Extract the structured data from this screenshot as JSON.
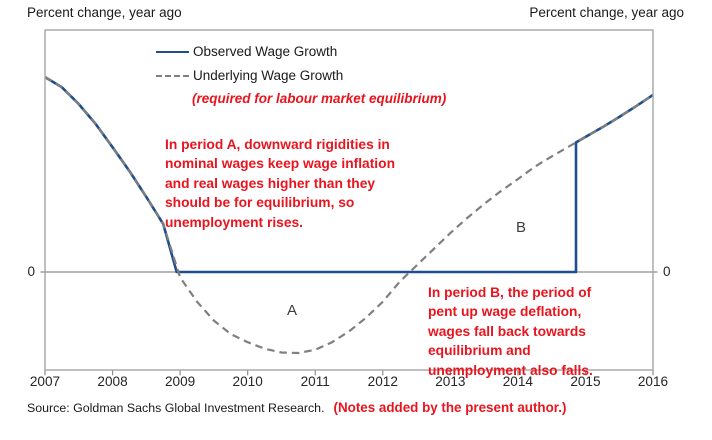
{
  "titles": {
    "left": "Percent change, year ago",
    "right": "Percent change, year ago"
  },
  "legend": {
    "observed_label": "Observed Wage Growth",
    "underlying_label": "Underlying Wage Growth",
    "underlying_sub": "(required for labour market equilibrium)"
  },
  "annotations": {
    "period_a": "In period A, downward rigidities in\nnominal wages keep wage inflation\nand real wages higher than they\nshould be for equilibrium, so\nunemployment rises.",
    "period_b": "In period B, the period of\npent up wage deflation,\nwages fall back towards\nequilibrium and\nunemployment also falls.",
    "label_a": "A",
    "label_b": "B"
  },
  "footer": {
    "source": "Source: Goldman Sachs Global Investment Research.",
    "note": "(Notes added by the present author.)"
  },
  "colors": {
    "observed_blue": "#1f4e8c",
    "underlying_gray": "#7f7f7f",
    "annotation_red": "#e8141e",
    "plot_border": "#a6a6a6",
    "zero_line": "#8c8c8c"
  },
  "chart_data": {
    "type": "line",
    "title": "",
    "xlabel": "",
    "ylabel": "Percent change, year ago",
    "x_range": [
      2007,
      2016
    ],
    "x_ticks": [
      "2007",
      "2008",
      "2009",
      "2010",
      "2011",
      "2012",
      "2013",
      "2014",
      "2015",
      "2016"
    ],
    "y_zero_label": "0",
    "ylim": [
      -1.8,
      4.5
    ],
    "grid": false,
    "legend_position": "top-center-inside",
    "series": [
      {
        "name": "Observed Wage Growth",
        "style": "solid",
        "color": "#1f4e8c",
        "points": [
          [
            2007,
            3.61
          ],
          [
            2007.25,
            3.42
          ],
          [
            2007.5,
            3.11
          ],
          [
            2007.75,
            2.74
          ],
          [
            2008,
            2.31
          ],
          [
            2008.25,
            1.87
          ],
          [
            2008.5,
            1.39
          ],
          [
            2008.75,
            0.89
          ],
          [
            2008.95,
            0
          ],
          [
            2014.86,
            0
          ],
          [
            2014.86,
            2.4
          ],
          [
            2015,
            2.5
          ],
          [
            2015.25,
            2.68
          ],
          [
            2015.5,
            2.87
          ],
          [
            2015.75,
            3.07
          ],
          [
            2016,
            3.28
          ]
        ]
      },
      {
        "name": "Underlying Wage Growth",
        "style": "dashed",
        "color": "#7f7f7f",
        "points": [
          [
            2007,
            3.61
          ],
          [
            2007.25,
            3.42
          ],
          [
            2007.5,
            3.11
          ],
          [
            2007.75,
            2.74
          ],
          [
            2008,
            2.31
          ],
          [
            2008.25,
            1.87
          ],
          [
            2008.5,
            1.39
          ],
          [
            2008.75,
            0.89
          ],
          [
            2009,
            -0.1
          ],
          [
            2009.25,
            -0.55
          ],
          [
            2009.5,
            -0.9
          ],
          [
            2009.75,
            -1.15
          ],
          [
            2010,
            -1.3
          ],
          [
            2010.25,
            -1.42
          ],
          [
            2010.5,
            -1.49
          ],
          [
            2010.75,
            -1.5
          ],
          [
            2011,
            -1.44
          ],
          [
            2011.25,
            -1.3
          ],
          [
            2011.5,
            -1.1
          ],
          [
            2011.75,
            -0.85
          ],
          [
            2012,
            -0.55
          ],
          [
            2012.25,
            -0.18
          ],
          [
            2012.5,
            0.12
          ],
          [
            2012.75,
            0.42
          ],
          [
            2013,
            0.72
          ],
          [
            2013.25,
            1.0
          ],
          [
            2013.5,
            1.26
          ],
          [
            2013.75,
            1.5
          ],
          [
            2014,
            1.72
          ],
          [
            2014.25,
            1.95
          ],
          [
            2014.5,
            2.14
          ],
          [
            2014.75,
            2.32
          ],
          [
            2014.86,
            2.4
          ],
          [
            2015,
            2.5
          ],
          [
            2015.25,
            2.68
          ],
          [
            2015.5,
            2.87
          ],
          [
            2015.75,
            3.07
          ],
          [
            2016,
            3.28
          ]
        ]
      }
    ]
  }
}
